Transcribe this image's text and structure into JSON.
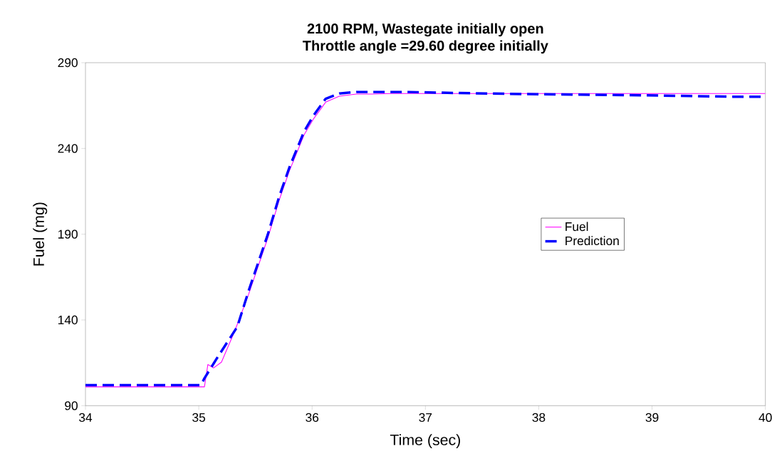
{
  "chart_data": {
    "type": "line",
    "title": "2100 RPM, Wastegate initially open\nThrottle angle =29.60 degree initially",
    "xlabel": "Time (sec)",
    "ylabel": "Fuel (mg)",
    "xlim": [
      34,
      40
    ],
    "xticks": [
      34,
      35,
      36,
      37,
      38,
      39,
      40
    ],
    "ylim": [
      90,
      290
    ],
    "yticks": [
      90,
      140,
      190,
      240,
      290
    ],
    "grid": false,
    "legend": "right",
    "series": [
      {
        "name": "Fuel",
        "color": "#ff00ff",
        "line_style": "solid",
        "x": [
          34,
          35.05,
          35.08,
          35.13,
          35.2,
          35.32,
          35.44,
          35.61,
          35.71,
          35.8,
          35.93,
          36.01,
          36.12,
          36.24,
          36.39,
          36.53,
          36.7,
          40
        ],
        "values": [
          101,
          101,
          114,
          112,
          115.4,
          134,
          155,
          188,
          210,
          227,
          248,
          257,
          267,
          270.5,
          271.7,
          271.7,
          272,
          272
        ]
      },
      {
        "name": "Prediction",
        "color": "#0000ff",
        "line_style": "dashed",
        "x": [
          34,
          35.02,
          35.05,
          35.17,
          35.34,
          35.44,
          35.61,
          35.71,
          35.8,
          35.93,
          36.01,
          36.12,
          36.24,
          36.39,
          36.8,
          37.3,
          37.9,
          38.9,
          39.7,
          40
        ],
        "values": [
          102,
          102,
          106,
          118.7,
          136,
          157,
          190,
          212,
          229,
          250,
          259,
          269,
          272,
          273,
          273,
          272.3,
          271.7,
          271,
          270.2,
          270.2
        ]
      }
    ]
  }
}
